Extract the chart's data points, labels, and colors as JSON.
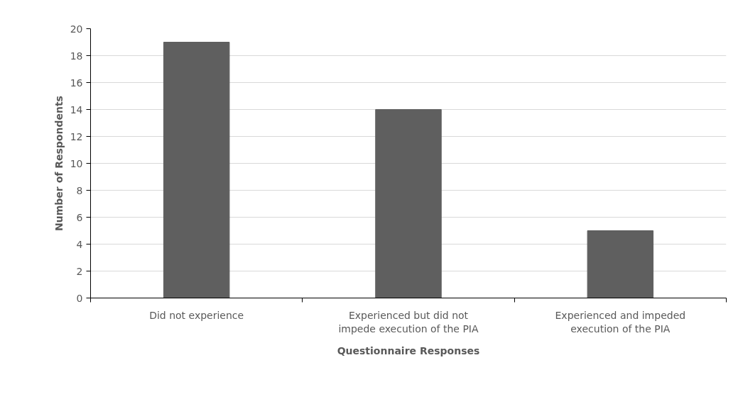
{
  "chart_data": {
    "type": "bar",
    "categories": [
      "Did not experience",
      "Experienced but did not impede execution of the PIA",
      "Experienced and impeded execution of the PIA"
    ],
    "values": [
      19,
      14,
      5
    ],
    "color": "#5f5f5f",
    "xlabel": "Questionnaire Responses",
    "ylabel": "Number of Respondents",
    "ylim": [
      0,
      20
    ],
    "yticks": [
      0,
      2,
      4,
      6,
      8,
      10,
      12,
      14,
      16,
      18,
      20
    ],
    "grid": "y"
  }
}
